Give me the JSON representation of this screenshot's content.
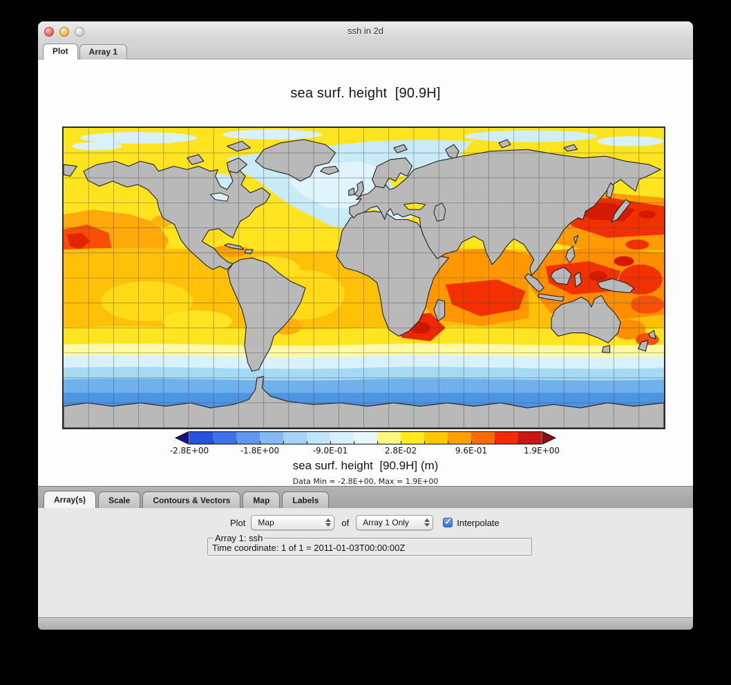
{
  "window": {
    "title": "ssh in 2d"
  },
  "main_tabs": [
    {
      "label": "Plot",
      "selected": true
    },
    {
      "label": "Array 1",
      "selected": false
    }
  ],
  "plot": {
    "title": "sea surf. height  [90.9H]",
    "caption": "sea surf. height  [90.9H] (m)",
    "stats": "Data Min = -2.8E+00, Max = 1.9E+00",
    "colorbar": {
      "ticks": [
        "-2.8E+00",
        "-1.8E+00",
        "-9.0E-01",
        "2.8E-02",
        "9.6E-01",
        "1.9E+00"
      ],
      "colors": [
        "#2A50DF",
        "#3F70EC",
        "#6197F2",
        "#84B9F4",
        "#A3D3F6",
        "#C0E5F8",
        "#D6EFFA",
        "#E9F7FC",
        "#FFF87E",
        "#FFEB1E",
        "#FFC703",
        "#FF9F00",
        "#FF6B00",
        "#F12C00",
        "#C91616"
      ],
      "left_arrow_color": "#14148C",
      "right_arrow_color": "#8C1212"
    },
    "map": {
      "land_color": "#B9B9B9",
      "coast_color": "#1C1C1C",
      "grid_color": "#4A4A4A"
    }
  },
  "control_tabs": [
    {
      "label": "Array(s)",
      "selected": true
    },
    {
      "label": "Scale",
      "selected": false
    },
    {
      "label": "Contours & Vectors",
      "selected": false
    },
    {
      "label": "Map",
      "selected": false
    },
    {
      "label": "Labels",
      "selected": false
    }
  ],
  "controls": {
    "plot_label": "Plot",
    "plot_type_value": "Map",
    "of_label": "of",
    "array_select_value": "Array 1 Only",
    "interpolate_label": "Interpolate",
    "interpolate_checked": true
  },
  "array_info": {
    "legend": "Array 1: ssh",
    "time_coordinate": "Time coordinate: 1 of 1 = 2011-01-03T00:00:00Z"
  }
}
